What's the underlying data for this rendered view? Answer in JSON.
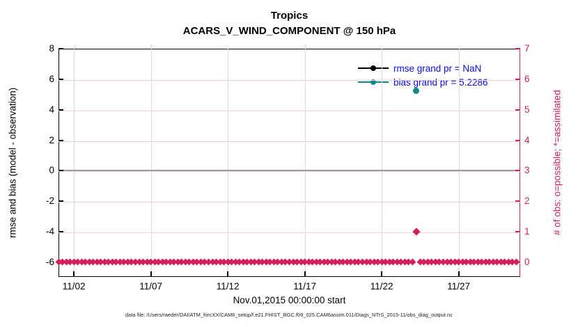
{
  "chart_data": {
    "type": "line",
    "title": "Tropics",
    "subtitle": "ACARS_V_WIND_COMPONENT @ 150 hPa",
    "left_axis": {
      "label": "rmse and bias (model - observation)",
      "ticks": [
        8,
        6,
        4,
        2,
        0,
        -2,
        -4,
        -6
      ],
      "range": [
        -6.96,
        8
      ],
      "color": "#000000"
    },
    "right_axis": {
      "label": "# of obs: o=possible; *=assimilated",
      "ticks": [
        7,
        6,
        5,
        4,
        3,
        2,
        1,
        0
      ],
      "range": [
        -0.48,
        7
      ],
      "color": "#d1205e"
    },
    "x_axis": {
      "label": "Nov.01,2015 00:00:00 start",
      "tick_labels": [
        "11/02",
        "11/07",
        "11/12",
        "11/17",
        "11/22",
        "11/27"
      ],
      "tick_days": [
        1,
        6,
        11,
        16,
        21,
        26
      ],
      "range_days": [
        0,
        30
      ],
      "grid": true
    },
    "zero_line_value": 0,
    "legend": [
      {
        "label": "rmse grand pr = NaN",
        "color": "#000000"
      },
      {
        "label": "bias grand pr = 5.2286",
        "color": "#0e8989"
      }
    ],
    "series": [
      {
        "name": "bias",
        "axis": "left",
        "color": "#0e8989",
        "marker": "circle",
        "points": [
          {
            "day": 23.25,
            "value": 5.2286
          }
        ]
      },
      {
        "name": "rmse",
        "axis": "left",
        "color": "#000000",
        "marker": "circle",
        "points": []
      },
      {
        "name": "obs-count-assimilated",
        "axis": "right",
        "color": "#d1205e",
        "marker": "asterisk",
        "start_day": 0,
        "end_day": 29.75,
        "step_days": 0.25,
        "default_count": 0,
        "exceptions": [
          {
            "day": 23.25,
            "count": 1
          }
        ]
      }
    ],
    "caption": "data file: /Users/raeder/DAI/ATM_forcXX/CAM6_setup/f.e21.FHIST_BGC.f09_025.CAM6assim.011/Diags_NTrS_2015-11/obs_diag_output.nc",
    "colors": {
      "grid_horizontal": "#f3d0de",
      "grid_vertical": "#dcdcdc",
      "zero_line": "#9e9e9e",
      "legend_text": "#0b0be6"
    }
  }
}
